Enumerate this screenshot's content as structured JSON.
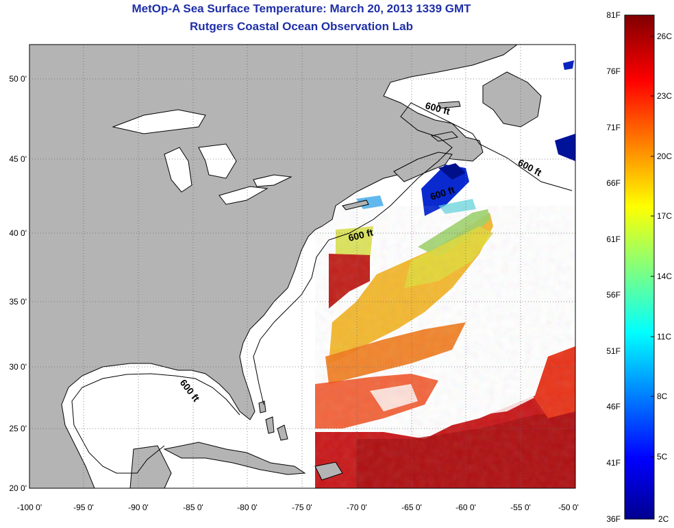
{
  "header": {
    "title": "MetOp-A Sea Surface Temperature:  March 20, 2013 1339 GMT",
    "subtitle": "Rutgers Coastal Ocean Observation Lab"
  },
  "map": {
    "lon_range": [
      -100,
      -50
    ],
    "lat_range": [
      20,
      52.5
    ],
    "lon_ticks": [
      "-100 0'",
      "-95 0'",
      "-90 0'",
      "-85 0'",
      "-80 0'",
      "-75 0'",
      "-70 0'",
      "-65 0'",
      "-60 0'",
      "-55 0'",
      "-50 0'"
    ],
    "lat_ticks": [
      "50 0'",
      "45 0'",
      "40 0'",
      "35 0'",
      "30 0'",
      "25 0'",
      "20 0'"
    ],
    "land_color": "#b4b4b4",
    "contour_labels": [
      "600 ft",
      "600 ft",
      "600 ft",
      "600 ft",
      "600 ft"
    ],
    "grid": "dotted"
  },
  "colorbar": {
    "f_labels": [
      "81F",
      "76F",
      "71F",
      "66F",
      "61F",
      "56F",
      "51F",
      "46F",
      "41F",
      "36F"
    ],
    "c_labels": [
      "26C",
      "23C",
      "20C",
      "17C",
      "14C",
      "11C",
      "8C",
      "5C",
      "2C"
    ],
    "f_range": [
      36,
      81
    ],
    "c_range": [
      2,
      27.2
    ],
    "colormap": "jet"
  }
}
